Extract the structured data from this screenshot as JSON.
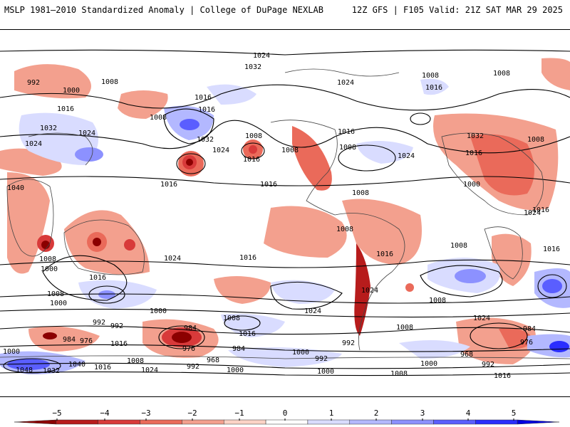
{
  "header": {
    "left_title": "MSLP 1981–2010 Standardized Anomaly | College of DuPage NEXLAB",
    "right_title": "12Z GFS | F105 Valid: 21Z SAT MAR 29 2025"
  },
  "map": {
    "isobar_labels": [
      "1024",
      "1032",
      "992",
      "1000",
      "1008",
      "1016",
      "1024",
      "1032",
      "1016",
      "1008",
      "1016",
      "1032",
      "1024",
      "1008",
      "1016",
      "1024",
      "1008",
      "1016",
      "1008",
      "1008",
      "1016",
      "1024",
      "1016",
      "1008",
      "1032",
      "1024",
      "1040",
      "1048",
      "984",
      "976",
      "1016",
      "992",
      "1000",
      "992",
      "984",
      "976",
      "968",
      "992",
      "1000",
      "1016",
      "1008",
      "1032",
      "1024",
      "1040",
      "1008",
      "1000",
      "1016",
      "1016",
      "1024",
      "1008",
      "1000",
      "1000",
      "1016",
      "1008",
      "1016",
      "1024",
      "1016",
      "1008",
      "992",
      "984",
      "1000",
      "992",
      "1000",
      "1008",
      "1016",
      "1024",
      "984",
      "976",
      "968",
      "1000",
      "992",
      "1008",
      "1016",
      "1016",
      "1008",
      "1008",
      "1024",
      "1000",
      "1008",
      "1016",
      "1008",
      "1024",
      "1016",
      "1008"
    ],
    "colors": {
      "isobar": "#000000",
      "coastline": "#444444"
    }
  },
  "colorbar": {
    "tick_labels": [
      "−5",
      "−4",
      "−3",
      "−2",
      "−1",
      "0",
      "1",
      "2",
      "3",
      "4",
      "5"
    ],
    "colors": [
      "#8b0000",
      "#b71c1c",
      "#d83a3a",
      "#ea6a5a",
      "#f3a08e",
      "#fbd3c6",
      "#ffffff",
      "#d9dcff",
      "#b3b8ff",
      "#8c91ff",
      "#5a5eff",
      "#2a2eff",
      "#0000e0"
    ]
  }
}
